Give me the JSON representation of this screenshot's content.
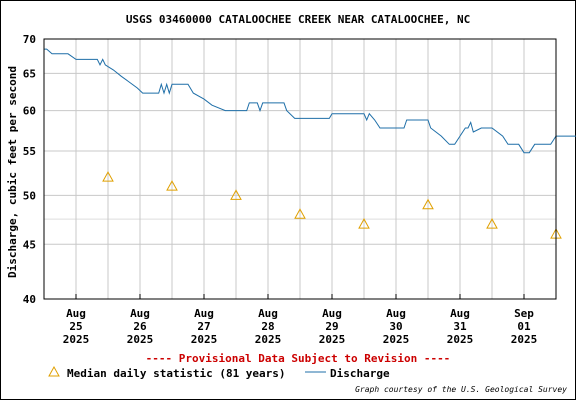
{
  "chart_data": {
    "type": "line",
    "title": "USGS 03460000 CATALOOCHEE CREEK NEAR CATALOOCHEE, NC",
    "ylabel": "Discharge, cubic feet per second",
    "xlabel": "",
    "y_scale": "log",
    "ylim": [
      40,
      70
    ],
    "y_ticks": [
      40,
      45,
      50,
      55,
      60,
      65,
      70
    ],
    "x_range_days": [
      "2025-08-24T12:00",
      "2025-09-01T12:00"
    ],
    "x_ticks": [
      {
        "date": "2025-08-25",
        "month": "Aug",
        "day": "25",
        "year": "2025"
      },
      {
        "date": "2025-08-26",
        "month": "Aug",
        "day": "26",
        "year": "2025"
      },
      {
        "date": "2025-08-27",
        "month": "Aug",
        "day": "27",
        "year": "2025"
      },
      {
        "date": "2025-08-28",
        "month": "Aug",
        "day": "28",
        "year": "2025"
      },
      {
        "date": "2025-08-29",
        "month": "Aug",
        "day": "29",
        "year": "2025"
      },
      {
        "date": "2025-08-30",
        "month": "Aug",
        "day": "30",
        "year": "2025"
      },
      {
        "date": "2025-08-31",
        "month": "Aug",
        "day": "31",
        "year": "2025"
      },
      {
        "date": "2025-09-01",
        "month": "Sep",
        "day": "01",
        "year": "2025"
      }
    ],
    "grid": true,
    "series": [
      {
        "name": "Discharge",
        "color": "#1f6fa8",
        "style": "line",
        "points": [
          [
            "2025-08-24T12:00",
            68.5
          ],
          [
            "2025-08-24T13:00",
            68.5
          ],
          [
            "2025-08-24T15:00",
            67.8
          ],
          [
            "2025-08-24T21:00",
            67.8
          ],
          [
            "2025-08-25T00:00",
            67.0
          ],
          [
            "2025-08-25T08:00",
            67.0
          ],
          [
            "2025-08-25T09:00",
            66.2
          ],
          [
            "2025-08-25T10:00",
            67.0
          ],
          [
            "2025-08-25T11:00",
            66.2
          ],
          [
            "2025-08-25T14:00",
            65.5
          ],
          [
            "2025-08-25T17:00",
            64.6
          ],
          [
            "2025-08-25T20:00",
            63.8
          ],
          [
            "2025-08-25T23:00",
            63.0
          ],
          [
            "2025-08-26T01:00",
            62.3
          ],
          [
            "2025-08-26T07:00",
            62.3
          ],
          [
            "2025-08-26T08:00",
            63.5
          ],
          [
            "2025-08-26T09:00",
            62.3
          ],
          [
            "2025-08-26T10:00",
            63.5
          ],
          [
            "2025-08-26T11:00",
            62.3
          ],
          [
            "2025-08-26T12:00",
            63.5
          ],
          [
            "2025-08-26T18:00",
            63.5
          ],
          [
            "2025-08-26T20:00",
            62.3
          ],
          [
            "2025-08-27T00:00",
            61.5
          ],
          [
            "2025-08-27T03:00",
            60.7
          ],
          [
            "2025-08-27T08:00",
            60.0
          ],
          [
            "2025-08-27T16:00",
            60.0
          ],
          [
            "2025-08-27T17:00",
            61.0
          ],
          [
            "2025-08-27T20:00",
            61.0
          ],
          [
            "2025-08-27T21:00",
            60.0
          ],
          [
            "2025-08-27T22:00",
            61.0
          ],
          [
            "2025-08-28T06:00",
            61.0
          ],
          [
            "2025-08-28T07:00",
            60.0
          ],
          [
            "2025-08-28T10:00",
            59.0
          ],
          [
            "2025-08-28T23:00",
            59.0
          ],
          [
            "2025-08-29T00:00",
            59.6
          ],
          [
            "2025-08-29T12:00",
            59.6
          ],
          [
            "2025-08-29T13:00",
            58.8
          ],
          [
            "2025-08-29T14:00",
            59.6
          ],
          [
            "2025-08-29T16:00",
            58.8
          ],
          [
            "2025-08-29T18:00",
            57.8
          ],
          [
            "2025-08-30T03:00",
            57.8
          ],
          [
            "2025-08-30T04:00",
            58.8
          ],
          [
            "2025-08-30T12:00",
            58.8
          ],
          [
            "2025-08-30T13:00",
            57.8
          ],
          [
            "2025-08-30T17:00",
            56.8
          ],
          [
            "2025-08-30T20:00",
            55.8
          ],
          [
            "2025-08-30T22:00",
            55.8
          ],
          [
            "2025-08-31T00:00",
            56.8
          ],
          [
            "2025-08-31T02:00",
            57.8
          ],
          [
            "2025-08-31T03:00",
            57.8
          ],
          [
            "2025-08-31T04:00",
            58.5
          ],
          [
            "2025-08-31T05:00",
            57.3
          ],
          [
            "2025-08-31T08:00",
            57.8
          ],
          [
            "2025-08-31T12:00",
            57.8
          ],
          [
            "2025-08-31T16:00",
            56.8
          ],
          [
            "2025-08-31T18:00",
            55.8
          ],
          [
            "2025-08-31T22:00",
            55.8
          ],
          [
            "2025-09-01T00:00",
            54.8
          ],
          [
            "2025-09-01T02:00",
            54.8
          ],
          [
            "2025-09-01T04:00",
            55.8
          ],
          [
            "2025-09-01T10:00",
            55.8
          ],
          [
            "2025-09-01T12:00",
            56.8
          ],
          [
            "2025-09-01T20:00",
            56.8
          ],
          [
            "2025-09-01T21:00",
            58.8
          ],
          [
            "2025-09-01T22:00",
            56.8
          ],
          [
            "2025-09-02T06:00",
            56.8
          ],
          [
            "2025-09-02T08:00",
            57.8
          ],
          [
            "2025-09-02T10:00",
            58.8
          ],
          [
            "2025-09-02T16:00",
            58.8
          ],
          [
            "2025-09-02T17:00",
            57.8
          ],
          [
            "2025-09-02T18:00",
            58.8
          ],
          [
            "2025-09-02T19:00",
            60.0
          ]
        ]
      },
      {
        "name": "Median daily statistic (81 years)",
        "color": "#e0a000",
        "style": "triangle",
        "points": [
          [
            "2025-08-25",
            52
          ],
          [
            "2025-08-26",
            51
          ],
          [
            "2025-08-27",
            50
          ],
          [
            "2025-08-28",
            48
          ],
          [
            "2025-08-29",
            47
          ],
          [
            "2025-08-30",
            49
          ],
          [
            "2025-08-31",
            47
          ],
          [
            "2025-09-01",
            46
          ]
        ]
      }
    ],
    "provisional_note": "---- Provisional Data Subject to Revision ----",
    "credit": "Graph courtesy of the U.S. Geological Survey"
  }
}
